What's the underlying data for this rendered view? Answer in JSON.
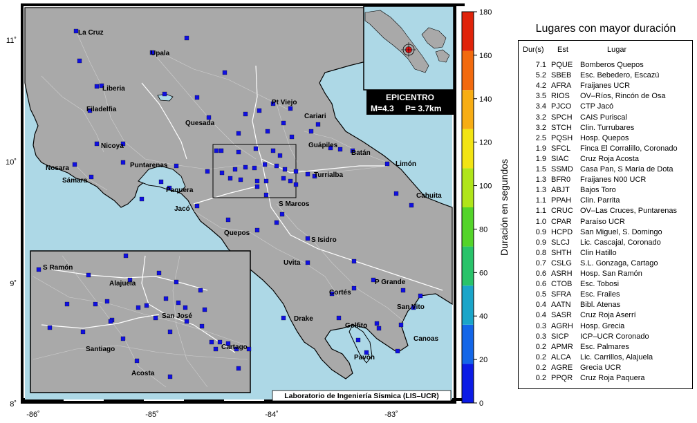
{
  "map": {
    "lon_ticks": [
      "-86˚",
      "-85˚",
      "-84˚",
      "-83˚"
    ],
    "lat_ticks": [
      "11˚",
      "10˚",
      "9˚",
      "8˚"
    ],
    "cities": [
      {
        "name": "La Cruz"
      },
      {
        "name": "Upala"
      },
      {
        "name": "Liberia"
      },
      {
        "name": "Filadelfia"
      },
      {
        "name": "Quesada"
      },
      {
        "name": "Pt Viejo"
      },
      {
        "name": "Cariari"
      },
      {
        "name": "Guápiles"
      },
      {
        "name": "Batán"
      },
      {
        "name": "Limón"
      },
      {
        "name": "Nicoya"
      },
      {
        "name": "Nosara"
      },
      {
        "name": "Sámara"
      },
      {
        "name": "Puntarenas"
      },
      {
        "name": "Paquera"
      },
      {
        "name": "Turrialba"
      },
      {
        "name": "Cahuita"
      },
      {
        "name": "Jacó"
      },
      {
        "name": "S Marcos"
      },
      {
        "name": "Quepos"
      },
      {
        "name": "S Isidro"
      },
      {
        "name": "Uvita"
      },
      {
        "name": "P Grande"
      },
      {
        "name": "Cortés"
      },
      {
        "name": "San Vito"
      },
      {
        "name": "Drake"
      },
      {
        "name": "Golfito"
      },
      {
        "name": "Canoas"
      },
      {
        "name": "Pavón"
      }
    ],
    "inset_cities": [
      {
        "name": "S Ramón"
      },
      {
        "name": "Alajuela"
      },
      {
        "name": "San José"
      },
      {
        "name": "Santiago"
      },
      {
        "name": "Cartago"
      },
      {
        "name": "Acosta"
      }
    ],
    "epicenter_title": "EPICENTRO",
    "epicenter_magnitude": "M=4.3",
    "epicenter_depth": "P=  3.7km",
    "credit": "Laboratorio de Ingeniería Sísmica (LIS–UCR)",
    "station_color": "#1010e0",
    "land_color": "#a9a9a9",
    "sea_color": "#add8e6"
  },
  "colorbar": {
    "label": "Duración en segundos",
    "ticks": [
      "0",
      "20",
      "40",
      "60",
      "80",
      "100",
      "120",
      "140",
      "160",
      "180"
    ],
    "colors": [
      "#0b1be5",
      "#1366e8",
      "#1aa5c9",
      "#29c36a",
      "#54d42a",
      "#b0e51a",
      "#f2e413",
      "#f7ad14",
      "#f26a0e",
      "#e0230a"
    ]
  },
  "table": {
    "title": "Lugares con mayor duración",
    "headers": {
      "dur": "Dur(s)",
      "est": "Est",
      "lugar": "Lugar"
    },
    "rows": [
      {
        "dur": "7.1",
        "est": "PQUE",
        "lugar": "Bomberos Quepos"
      },
      {
        "dur": "5.2",
        "est": "SBEB",
        "lugar": "Esc. Bebedero, Escazú"
      },
      {
        "dur": "4.2",
        "est": "AFRA",
        "lugar": "Fraijanes UCR"
      },
      {
        "dur": "3.5",
        "est": "RIOS",
        "lugar": "OV–Ríos, Rincón de Osa"
      },
      {
        "dur": "3.4",
        "est": "PJCO",
        "lugar": "CTP Jacó"
      },
      {
        "dur": "3.2",
        "est": "SPCH",
        "lugar": "CAIS Puriscal"
      },
      {
        "dur": "3.2",
        "est": "STCH",
        "lugar": "Clin. Turrubares"
      },
      {
        "dur": "2.5",
        "est": "PQSH",
        "lugar": "Hosp. Quepos"
      },
      {
        "dur": "1.9",
        "est": "SFCL",
        "lugar": "Finca El Corralillo, Coronado"
      },
      {
        "dur": "1.9",
        "est": "SIAC",
        "lugar": "Cruz Roja Acosta"
      },
      {
        "dur": "1.5",
        "est": "SSMD",
        "lugar": "Casa Pan, S María de Dota"
      },
      {
        "dur": "1.3",
        "est": "BFR0",
        "lugar": "Fraijanes N00 UCR"
      },
      {
        "dur": "1.3",
        "est": "ABJT",
        "lugar": "Bajos Toro"
      },
      {
        "dur": "1.1",
        "est": "PPAH",
        "lugar": "Clin. Parrita"
      },
      {
        "dur": "1.1",
        "est": "CRUC",
        "lugar": "OV–Las Cruces, Puntarenas"
      },
      {
        "dur": "1.0",
        "est": "CPAR",
        "lugar": "Paraíso UCR"
      },
      {
        "dur": "0.9",
        "est": "HCPD",
        "lugar": "San Miguel, S. Domingo"
      },
      {
        "dur": "0.9",
        "est": "SLCJ",
        "lugar": "Lic. Cascajal, Coronado"
      },
      {
        "dur": "0.8",
        "est": "SHTH",
        "lugar": "Clin Hatillo"
      },
      {
        "dur": "0.7",
        "est": "CSLG",
        "lugar": "S.L. Gonzaga, Cartago"
      },
      {
        "dur": "0.6",
        "est": "ASRH",
        "lugar": "Hosp. San Ramón"
      },
      {
        "dur": "0.6",
        "est": "CTOB",
        "lugar": "Esc. Tobosi"
      },
      {
        "dur": "0.5",
        "est": "SFRA",
        "lugar": "Esc. Frailes"
      },
      {
        "dur": "0.4",
        "est": "AATN",
        "lugar": "Bibl. Atenas"
      },
      {
        "dur": "0.4",
        "est": "SASR",
        "lugar": "Cruz Roja Aserrí"
      },
      {
        "dur": "0.3",
        "est": "AGRH",
        "lugar": "Hosp. Grecia"
      },
      {
        "dur": "0.3",
        "est": "SICP",
        "lugar": "ICP–UCR Coronado"
      },
      {
        "dur": "0.2",
        "est": "APMR",
        "lugar": "Esc. Palmares"
      },
      {
        "dur": "0.2",
        "est": "ALCA",
        "lugar": "Lic. Carrillos, Alajuela"
      },
      {
        "dur": "0.2",
        "est": "AGRE",
        "lugar": "Grecia UCR"
      },
      {
        "dur": "0.2",
        "est": "PPQR",
        "lugar": "Cruz Roja Paquera"
      }
    ]
  }
}
